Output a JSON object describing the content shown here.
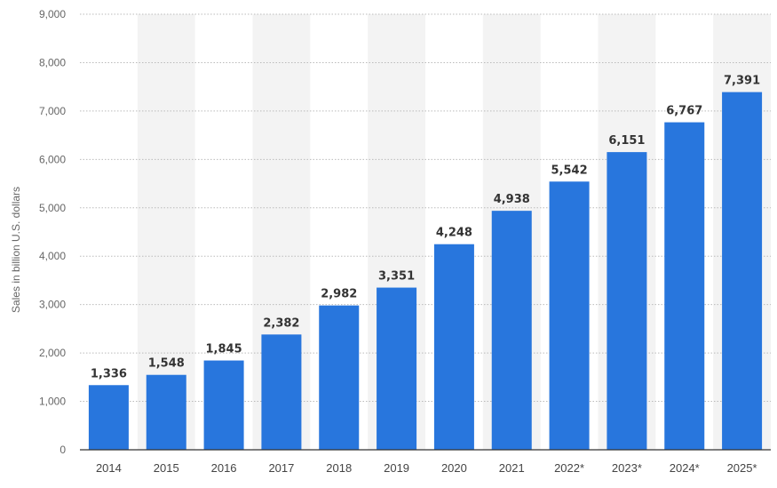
{
  "chart_data": {
    "type": "bar",
    "title": "",
    "xlabel": "",
    "ylabel": "Sales in billion U.S. dollars",
    "categories": [
      "2014",
      "2015",
      "2016",
      "2017",
      "2018",
      "2019",
      "2020",
      "2021",
      "2022*",
      "2023*",
      "2024*",
      "2025*"
    ],
    "values": [
      1336,
      1548,
      1845,
      2382,
      2982,
      3351,
      4248,
      4938,
      5542,
      6151,
      6767,
      7391
    ],
    "value_labels": [
      "1,336",
      "1,548",
      "1,845",
      "2,382",
      "2,982",
      "3,351",
      "4,248",
      "4,938",
      "5,542",
      "6,151",
      "6,767",
      "7,391"
    ],
    "ylim": [
      0,
      9000
    ],
    "yticks": [
      0,
      1000,
      2000,
      3000,
      4000,
      5000,
      6000,
      7000,
      8000,
      9000
    ],
    "ytick_labels": [
      "0",
      "1,000",
      "2,000",
      "3,000",
      "4,000",
      "5,000",
      "6,000",
      "7,000",
      "8,000",
      "9,000"
    ],
    "grid": true,
    "legend": "none",
    "colors": {
      "bar": "#2876dd",
      "band": "#f3f3f3",
      "grid": "#bbbbbb",
      "axis": "#333333"
    }
  }
}
